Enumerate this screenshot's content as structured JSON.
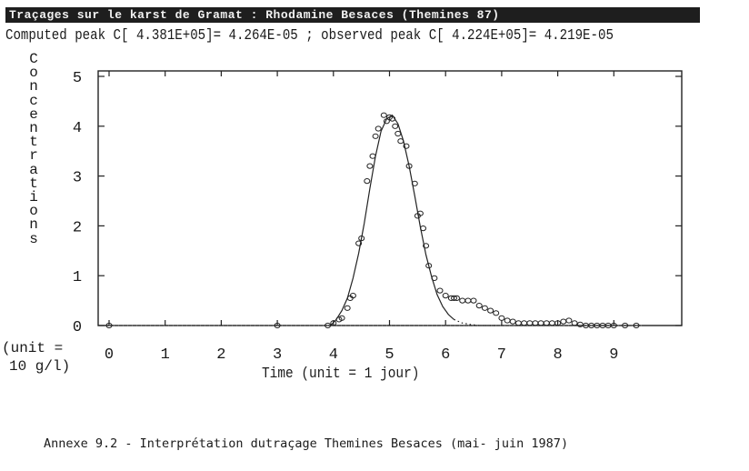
{
  "header": {
    "title": "Traçages sur le karst de Gramat : Rhodamine Besaces (Themines 87)",
    "subtitle": "Computed peak C[ 4.381E+05]= 4.264E-05 ; observed peak C[ 4.224E+05]= 4.219E-05"
  },
  "caption": "Annexe 9.2 - Interprétation dutraçage Themines Besaces (mai- juin 1987)",
  "chart_data": {
    "type": "scatter",
    "xlabel": "Time (unit = 1 jour)",
    "ylabel": "Concentrations",
    "ylabel_unit_line1": "(unit =",
    "ylabel_unit_line2": "10 g/l)",
    "xlim": [
      0,
      10
    ],
    "ylim": [
      0,
      5
    ],
    "x_ticks": [
      "0",
      "1",
      "2",
      "3",
      "4",
      "5",
      "6",
      "7",
      "8",
      "9"
    ],
    "y_ticks": [
      "0",
      "1",
      "2",
      "3",
      "4",
      "5"
    ],
    "grid": false,
    "series": [
      {
        "name": "",
        "kind": "computed-solid",
        "x": [
          3.95,
          4.05,
          4.15,
          4.25,
          4.35,
          4.45,
          4.55,
          4.65,
          4.75,
          4.85,
          4.95,
          5.05,
          5.15,
          5.25,
          5.35,
          5.45,
          5.55,
          5.65,
          5.75,
          5.85,
          5.95,
          6.05,
          6.15
        ],
        "y": [
          0.0,
          0.12,
          0.3,
          0.55,
          0.95,
          1.45,
          2.05,
          2.75,
          3.4,
          3.9,
          4.15,
          4.22,
          4.05,
          3.7,
          3.2,
          2.6,
          1.98,
          1.42,
          0.98,
          0.62,
          0.38,
          0.22,
          0.12
        ]
      },
      {
        "name": "",
        "kind": "computed-dotted",
        "x": [
          6.15,
          6.3,
          6.45,
          6.6,
          6.75,
          6.9
        ],
        "y": [
          0.12,
          0.05,
          0.02,
          0.0,
          0.0,
          0.0
        ]
      },
      {
        "name": "",
        "kind": "observed",
        "x": [
          0.0,
          3.0,
          3.9,
          4.0,
          4.1,
          4.15,
          4.25,
          4.3,
          4.35,
          4.45,
          4.5,
          4.6,
          4.65,
          4.7,
          4.75,
          4.8,
          4.9,
          4.95,
          5.0,
          5.05,
          5.1,
          5.15,
          5.2,
          5.3,
          5.35,
          5.45,
          5.5,
          5.55,
          5.6,
          5.65,
          5.7,
          5.8,
          5.9,
          6.0,
          6.1,
          6.15,
          6.2,
          6.3,
          6.4,
          6.5,
          6.6,
          6.7,
          6.8,
          6.9,
          7.0,
          7.1,
          7.2,
          7.3,
          7.4,
          7.5,
          7.6,
          7.7,
          7.8,
          7.9,
          8.0,
          8.1,
          8.2,
          8.3,
          8.4,
          8.5,
          8.6,
          8.7,
          8.8,
          8.9,
          9.0,
          9.2,
          9.4
        ],
        "y": [
          0.0,
          0.0,
          0.0,
          0.05,
          0.12,
          0.15,
          0.35,
          0.55,
          0.6,
          1.65,
          1.75,
          2.9,
          3.2,
          3.4,
          3.8,
          3.95,
          4.22,
          4.1,
          4.18,
          4.15,
          4.0,
          3.85,
          3.7,
          3.6,
          3.2,
          2.85,
          2.2,
          2.25,
          1.95,
          1.6,
          1.2,
          0.95,
          0.7,
          0.6,
          0.55,
          0.55,
          0.55,
          0.5,
          0.5,
          0.5,
          0.4,
          0.35,
          0.3,
          0.25,
          0.15,
          0.1,
          0.08,
          0.05,
          0.05,
          0.05,
          0.05,
          0.05,
          0.05,
          0.05,
          0.05,
          0.08,
          0.1,
          0.05,
          0.02,
          0.0,
          0.0,
          0.0,
          0.0,
          0.0,
          0.0,
          0.0,
          0.0
        ]
      }
    ]
  }
}
